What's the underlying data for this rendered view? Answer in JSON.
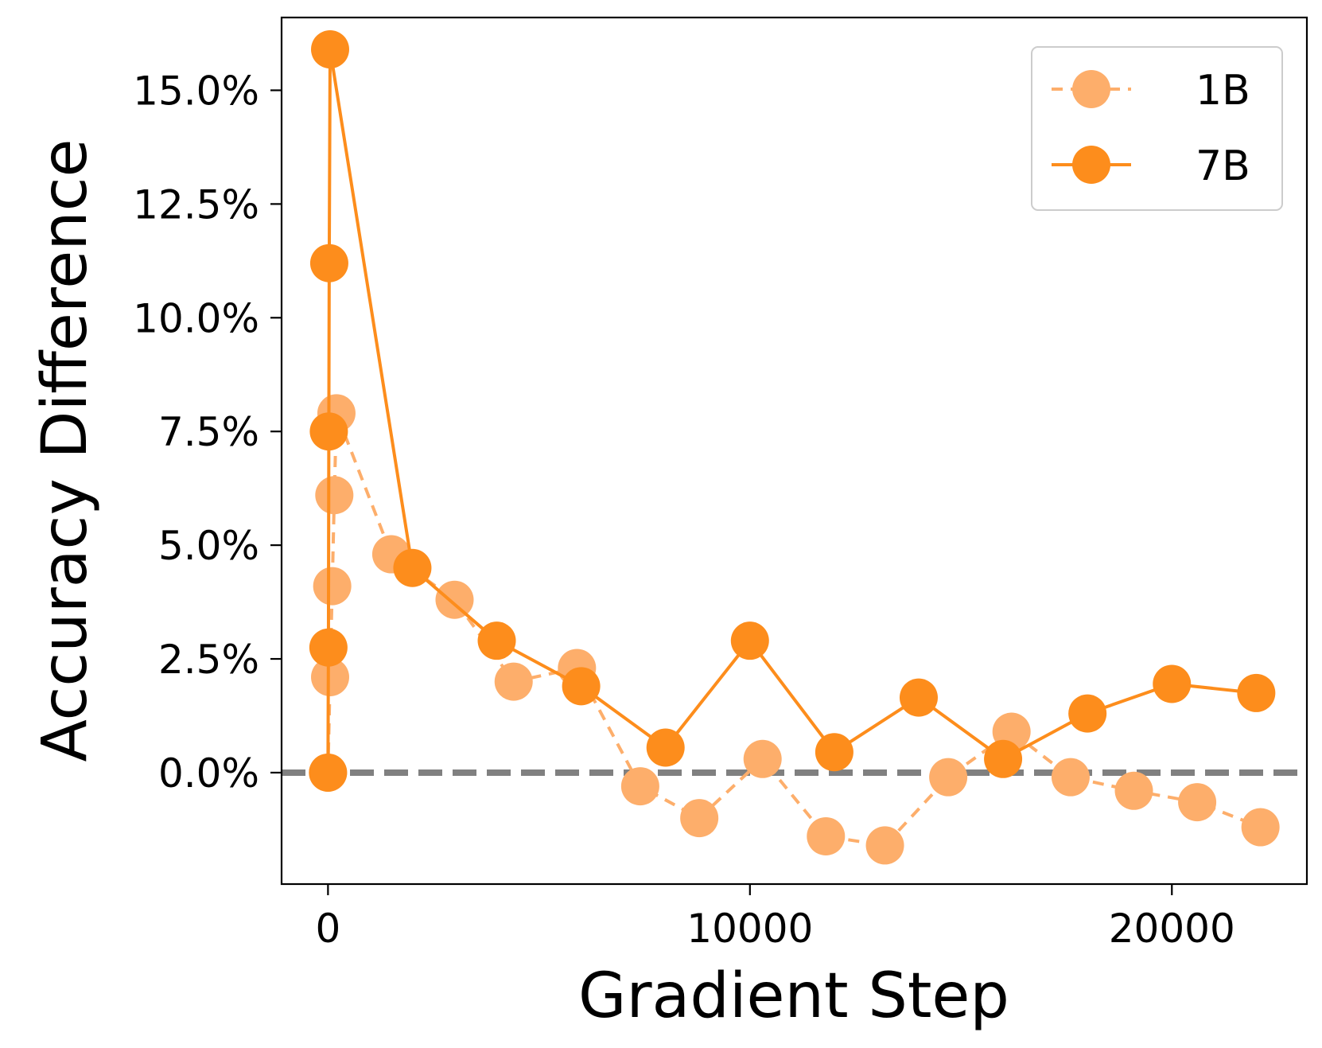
{
  "chart_data": {
    "type": "line",
    "xlabel": "Gradient Step",
    "ylabel": "Accuracy Difference",
    "xlim": [
      -1100,
      23200
    ],
    "ylim": [
      -2.45,
      16.6
    ],
    "xticks": [
      0,
      10000,
      20000
    ],
    "xtick_labels": [
      "0",
      "10000",
      "20000"
    ],
    "yticks": [
      0.0,
      2.5,
      5.0,
      7.5,
      10.0,
      12.5,
      15.0
    ],
    "ytick_labels": [
      "0.0%",
      "2.5%",
      "5.0%",
      "7.5%",
      "10.0%",
      "12.5%",
      "15.0%"
    ],
    "reference_line": {
      "y": 0,
      "color": "#808080",
      "style": "dashed"
    },
    "legend": {
      "position": "upper right"
    },
    "grid": false,
    "series": [
      {
        "name": "1B",
        "color": "#fdae6b",
        "line_style": "dashed",
        "marker": "circle",
        "x": [
          0,
          50,
          100,
          150,
          200,
          1500,
          3000,
          4400,
          5900,
          7400,
          8800,
          10300,
          11800,
          13200,
          14700,
          16200,
          17600,
          19100,
          20600,
          22100
        ],
        "y": [
          0.0,
          2.1,
          4.1,
          6.1,
          7.9,
          4.8,
          3.8,
          2.0,
          2.3,
          -0.3,
          -1.0,
          0.3,
          -1.4,
          -1.6,
          -0.1,
          0.9,
          -0.1,
          -0.4,
          -0.65,
          -1.2
        ]
      },
      {
        "name": "7B",
        "color": "#fd8d1c",
        "line_style": "solid",
        "marker": "circle",
        "x": [
          0,
          10,
          20,
          30,
          50,
          2000,
          4000,
          6000,
          8000,
          10000,
          12000,
          14000,
          16000,
          18000,
          20000,
          22000
        ],
        "y": [
          0.0,
          2.75,
          7.5,
          11.2,
          15.9,
          4.5,
          2.9,
          1.9,
          0.55,
          2.9,
          0.45,
          1.65,
          0.3,
          1.3,
          1.95,
          1.75
        ]
      }
    ]
  }
}
